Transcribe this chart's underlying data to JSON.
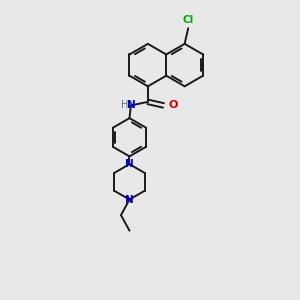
{
  "background_color": "#e8e8e8",
  "bond_color": "#1a1a1a",
  "nitrogen_color": "#0000cc",
  "oxygen_color": "#cc0000",
  "chlorine_color": "#00aa00",
  "hydrogen_color": "#4a7a7a",
  "figsize": [
    3.0,
    3.0
  ],
  "dpi": 100,
  "lw": 1.4,
  "xlim": [
    -0.5,
    2.0
  ],
  "ylim": [
    0.0,
    4.2
  ]
}
